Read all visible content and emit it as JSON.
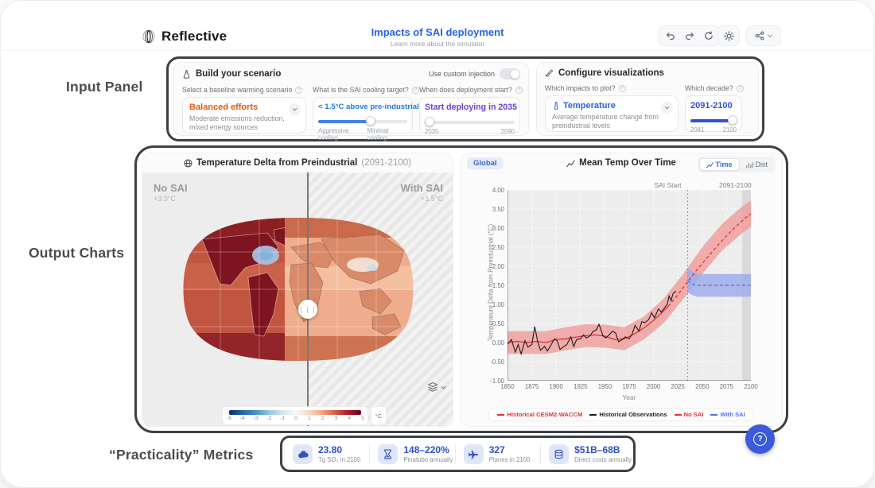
{
  "colors": {
    "accent_blue": "#2563eb",
    "value_blue": "#2b50cb",
    "sky_blue": "#2079e8",
    "orange": "#e8590c",
    "purple": "#6b3fd4",
    "series_red": "#e03131",
    "series_black": "#1d1d1f",
    "series_blue": "#4c6ef5",
    "help_blue": "#3b5bdb"
  },
  "header": {
    "brand": "Reflective",
    "title": "Impacts of SAI deployment",
    "subtitle": "Learn more about the simulator"
  },
  "annotations": {
    "input_panel": "Input Panel",
    "output_charts": "Output Charts",
    "practicality_metrics": "“Practicality” Metrics"
  },
  "scenario_panel": {
    "title": "Build your scenario",
    "custom_injection_label": "Use custom injection",
    "baseline": {
      "label": "Select a baseline warming scenario",
      "value": "Balanced efforts",
      "description": "Moderate emissions reduction, mixed energy sources"
    },
    "cooling_target": {
      "label": "What is the SAI cooling target?",
      "value": "< 1.5°C above pre-industrial",
      "min_label": "Aggressive cooling",
      "max_label": "Minimal cooling"
    },
    "deployment_start": {
      "label": "When does deployment start?",
      "value": "Start deploying in 2035",
      "min_label": "2035",
      "max_label": "2090"
    }
  },
  "viz_panel": {
    "title": "Configure visualizations",
    "impacts": {
      "label": "Which impacts to plot?",
      "value": "Temperature",
      "description": "Average temperature change from preindustrial levels"
    },
    "decade": {
      "label": "Which decade?",
      "value": "2091-2100",
      "min_label": "2041",
      "max_label": "2100"
    }
  },
  "map_panel": {
    "title": "Temperature Delta from Preindustrial",
    "title_suffix": "(2091-2100)",
    "left_label": "No SAI",
    "left_value": "+3.3°C",
    "right_label": "With SAI",
    "right_value": "+1.5°C"
  },
  "time_panel": {
    "region_badge": "Global",
    "title": "Mean Temp Over Time",
    "toggle_time": "Time",
    "toggle_dist": "Dist"
  },
  "metrics": {
    "items": [
      {
        "icon": "cloud-icon",
        "value": "23.80",
        "label": "Tg SO₂ in 2100"
      },
      {
        "icon": "hourglass-icon",
        "value": "148–220%",
        "label": "Pinatubo annually"
      },
      {
        "icon": "plane-icon",
        "value": "327",
        "label": "Planes in 2100"
      },
      {
        "icon": "coins-icon",
        "value": "$51B–68B",
        "label": "Direct costs annually"
      }
    ]
  },
  "help": {
    "label": "?"
  },
  "chart_data": [
    {
      "type": "line",
      "title": "Mean Temp Over Time",
      "xlabel": "Year",
      "ylabel": "Temperature Delta from Preindustrial (°C)",
      "xlim": [
        1850,
        2100
      ],
      "ylim": [
        -1.0,
        4.0
      ],
      "x_ticks": [
        1850,
        1875,
        1900,
        1925,
        1950,
        1975,
        2000,
        2025,
        2050,
        2075,
        2100
      ],
      "y_ticks": [
        -1.0,
        -0.5,
        0.0,
        0.5,
        1.0,
        1.5,
        2.0,
        2.5,
        3.0,
        3.5,
        4.0
      ],
      "grid": true,
      "legend_position": "bottom",
      "annotations": {
        "sai_start": {
          "label": "SAI Start",
          "x": 2035
        },
        "decade": {
          "label": "2091-2100",
          "x0": 2091,
          "x1": 2100
        }
      },
      "bands": [
        {
          "name": "No SAI uncertainty",
          "color": "#f09a9a",
          "opacity": 0.8,
          "x": [
            1850,
            1870,
            1890,
            1910,
            1930,
            1950,
            1970,
            1990,
            2010,
            2030,
            2050,
            2070,
            2090,
            2100
          ],
          "lo": [
            -0.3,
            -0.3,
            -0.3,
            -0.2,
            -0.12,
            -0.13,
            -0.2,
            0.08,
            0.5,
            1.12,
            1.8,
            2.4,
            2.85,
            3.03
          ],
          "hi": [
            0.3,
            0.3,
            0.3,
            0.4,
            0.48,
            0.47,
            0.4,
            0.68,
            1.14,
            1.78,
            2.5,
            3.1,
            3.55,
            3.72
          ]
        },
        {
          "name": "With SAI uncertainty",
          "color": "#9fadea",
          "opacity": 0.85,
          "x": [
            2035,
            2040,
            2045,
            2060,
            2080,
            2100
          ],
          "lo": [
            1.32,
            1.24,
            1.2,
            1.2,
            1.2,
            1.2
          ],
          "hi": [
            1.95,
            1.86,
            1.8,
            1.8,
            1.8,
            1.8
          ]
        }
      ],
      "series": [
        {
          "name": "Historical CESM2-WACCM",
          "color": "#e03131",
          "dash": false,
          "width": 1.3,
          "x": [
            1850,
            1860,
            1870,
            1880,
            1890,
            1900,
            1910,
            1920,
            1930,
            1940,
            1950,
            1960,
            1970,
            1980,
            1990,
            2000,
            2010,
            2015
          ],
          "y": [
            0.0,
            0.03,
            0.0,
            0.03,
            0.0,
            0.08,
            0.1,
            0.14,
            0.18,
            0.2,
            0.17,
            0.08,
            0.1,
            0.22,
            0.38,
            0.58,
            0.82,
            0.95
          ]
        },
        {
          "name": "Historical Observations",
          "color": "#1d1d1f",
          "dash": false,
          "width": 1.1,
          "x": [
            1850,
            1854,
            1858,
            1861,
            1864,
            1868,
            1871,
            1875,
            1878,
            1881,
            1884,
            1888,
            1891,
            1895,
            1898,
            1901,
            1904,
            1908,
            1911,
            1915,
            1918,
            1921,
            1925,
            1928,
            1931,
            1935,
            1938,
            1941,
            1944,
            1948,
            1951,
            1955,
            1958,
            1961,
            1964,
            1968,
            1971,
            1975,
            1978,
            1981,
            1985,
            1988,
            1991,
            1995,
            1998,
            2001,
            2005,
            2008,
            2011,
            2014,
            2016,
            2018,
            2020,
            2023
          ],
          "y": [
            -0.05,
            0.08,
            -0.25,
            -0.05,
            -0.3,
            0.05,
            -0.12,
            -0.05,
            0.42,
            0.02,
            -0.2,
            -0.1,
            -0.22,
            -0.05,
            0.1,
            0.05,
            -0.18,
            -0.1,
            -0.05,
            0.15,
            -0.1,
            0.08,
            0.1,
            0.2,
            0.12,
            0.18,
            0.3,
            0.32,
            0.48,
            0.18,
            0.12,
            0.22,
            0.3,
            0.25,
            0.02,
            0.08,
            0.15,
            0.1,
            0.22,
            0.45,
            0.3,
            0.55,
            0.52,
            0.6,
            0.78,
            0.65,
            0.88,
            0.8,
            0.9,
            1.0,
            1.22,
            1.1,
            1.28,
            1.35
          ]
        },
        {
          "name": "No SAI",
          "color": "#e03131",
          "dash": true,
          "width": 1.3,
          "x": [
            2015,
            2025,
            2035,
            2045,
            2055,
            2065,
            2075,
            2085,
            2095,
            2100
          ],
          "y": [
            0.95,
            1.25,
            1.6,
            1.92,
            2.22,
            2.52,
            2.8,
            3.05,
            3.28,
            3.38
          ]
        },
        {
          "name": "With SAI",
          "color": "#4c6ef5",
          "dash": true,
          "width": 1.3,
          "x": [
            2035,
            2040,
            2045,
            2100
          ],
          "y": [
            1.62,
            1.53,
            1.5,
            1.5
          ]
        }
      ],
      "legend": [
        {
          "label": "Historical CESM2-WACCM",
          "color": "#e03131",
          "dash": false
        },
        {
          "label": "Historical Observations",
          "color": "#1d1d1f",
          "dash": false
        },
        {
          "label": "No SAI",
          "color": "#e03131",
          "dash": true
        },
        {
          "label": "With SAI",
          "color": "#4c6ef5",
          "dash": true
        }
      ]
    },
    {
      "type": "heatmap",
      "title": "Temperature Delta from Preindustrial (2091-2100)",
      "compare": {
        "left": {
          "label": "No SAI",
          "value": "+3.3°C"
        },
        "right": {
          "label": "With SAI",
          "value": "+1.5°C"
        }
      },
      "colorbar": {
        "unit": "°C",
        "min": -5,
        "max": 5,
        "ticks": [
          -5,
          -4,
          -3,
          -2,
          -1,
          0,
          1,
          2,
          3,
          4,
          5
        ],
        "colors": [
          "#053061",
          "#2166ac",
          "#4393c3",
          "#92c5de",
          "#d1e5f0",
          "#f7f7f7",
          "#fddbc7",
          "#f4a582",
          "#d6604d",
          "#b2182b",
          "#67001f"
        ]
      }
    }
  ]
}
